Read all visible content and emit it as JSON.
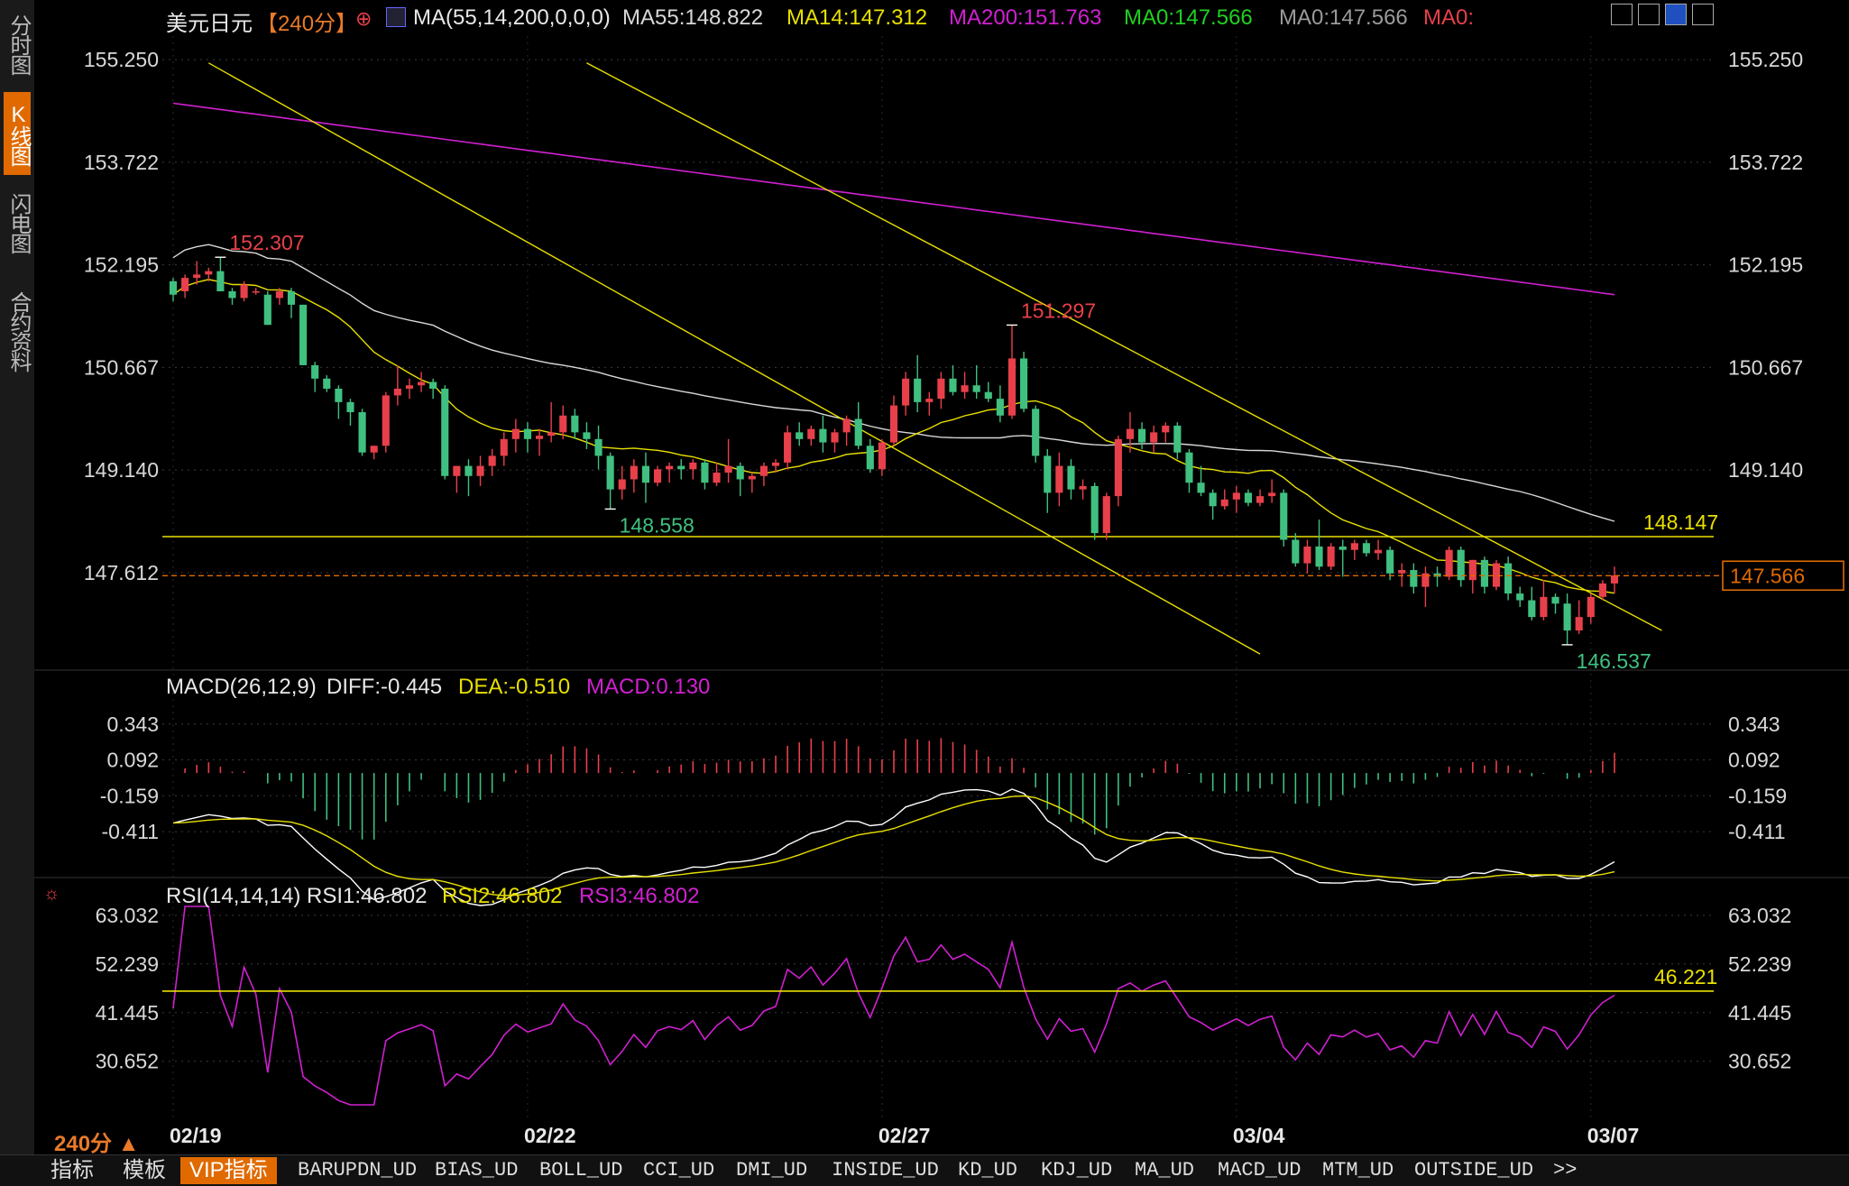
{
  "side_tabs": [
    "分时图",
    "K线图",
    "闪电图",
    "合约资料"
  ],
  "header": {
    "symbol": "美元日元",
    "period": "【240分】",
    "ma_spec": "MA(55,14,200,0,0,0)",
    "ma55": "MA55:148.822",
    "ma14": "MA14:147.312",
    "ma200": "MA200:151.763",
    "ma0a": "MA0:147.566",
    "ma0b": "MA0:147.566",
    "ma0c": "MA0:"
  },
  "macd_header": {
    "spec": "MACD(26,12,9)",
    "diff": "DIFF:-0.445",
    "dea": "DEA:-0.510",
    "macd": "MACD:0.130"
  },
  "rsi_header": {
    "spec": "RSI(14,14,14)",
    "rsi1": "RSI1:46.802",
    "rsi2": "RSI2:46.802",
    "rsi3": "RSI3:46.802"
  },
  "period_selector": "240分 ▲",
  "bottom_tabs": [
    "指标",
    "模板",
    "VIP指标",
    "BARUPDN_UD",
    "BIAS_UD",
    "BOLL_UD",
    "CCI_UD",
    "DMI_UD",
    "INSIDE_UD",
    "KD_UD",
    "KDJ_UD",
    "MA_UD",
    "MACD_UD",
    "MTM_UD",
    "OUTSIDE_UD",
    ">>"
  ],
  "colors": {
    "up": "#e8404a",
    "down": "#40c080",
    "ma14": "#e8e000",
    "ma55": "#d8d8d8",
    "ma200": "#d020d0",
    "dif": "#ffffff",
    "dea": "#e8e000",
    "rsi": "#d020d0",
    "accent": "#e06a00"
  },
  "chart_data": [
    {
      "type": "candlestick",
      "title": "美元日元 【240分】",
      "y_ticks": [
        "155.250",
        "153.722",
        "152.195",
        "150.667",
        "149.140",
        "147.612"
      ],
      "x_ticks": [
        "02/19",
        "02/22",
        "02/27",
        "03/04",
        "03/07"
      ],
      "ylim": [
        146.2,
        155.6
      ],
      "last_price": "147.566",
      "annotations": {
        "high_1": "152.307",
        "low_1": "148.558",
        "high_2": "151.297",
        "low_2": "146.537",
        "support": "148.147"
      },
      "ohlc": [
        [
          151.95,
          152.0,
          151.65,
          151.75
        ],
        [
          151.8,
          152.05,
          151.7,
          152.0
        ],
        [
          152.0,
          152.25,
          151.9,
          152.05
        ],
        [
          152.05,
          152.15,
          151.95,
          152.1
        ],
        [
          152.1,
          152.31,
          151.8,
          151.8
        ],
        [
          151.8,
          151.85,
          151.6,
          151.7
        ],
        [
          151.7,
          151.95,
          151.65,
          151.9
        ],
        [
          151.8,
          151.85,
          151.75,
          151.8
        ],
        [
          151.75,
          151.8,
          151.3,
          151.3
        ],
        [
          151.7,
          151.85,
          151.6,
          151.8
        ],
        [
          151.8,
          151.85,
          151.4,
          151.6
        ],
        [
          151.6,
          151.6,
          150.7,
          150.7
        ],
        [
          150.7,
          150.75,
          150.3,
          150.5
        ],
        [
          150.5,
          150.55,
          150.3,
          150.35
        ],
        [
          150.35,
          150.4,
          149.9,
          150.15
        ],
        [
          150.15,
          150.2,
          149.8,
          150.0
        ],
        [
          150.0,
          150.05,
          149.35,
          149.4
        ],
        [
          149.4,
          149.5,
          149.3,
          149.5
        ],
        [
          149.5,
          150.3,
          149.4,
          150.25
        ],
        [
          150.25,
          150.7,
          150.1,
          150.35
        ],
        [
          150.35,
          150.5,
          150.2,
          150.4
        ],
        [
          150.4,
          150.6,
          150.3,
          150.45
        ],
        [
          150.45,
          150.5,
          150.2,
          150.35
        ],
        [
          150.35,
          150.4,
          149.0,
          149.05
        ],
        [
          149.05,
          149.2,
          148.8,
          149.2
        ],
        [
          149.2,
          149.3,
          148.75,
          149.05
        ],
        [
          149.05,
          149.35,
          148.9,
          149.2
        ],
        [
          149.2,
          149.45,
          149.05,
          149.35
        ],
        [
          149.35,
          149.7,
          149.2,
          149.6
        ],
        [
          149.6,
          149.9,
          149.4,
          149.75
        ],
        [
          149.75,
          149.85,
          149.4,
          149.6
        ],
        [
          149.6,
          149.75,
          149.35,
          149.65
        ],
        [
          149.65,
          150.15,
          149.55,
          149.7
        ],
        [
          149.7,
          150.1,
          149.6,
          149.95
        ],
        [
          149.95,
          150.05,
          149.6,
          149.7
        ],
        [
          149.7,
          149.85,
          149.45,
          149.6
        ],
        [
          149.6,
          149.8,
          149.15,
          149.35
        ],
        [
          149.35,
          149.4,
          148.56,
          148.85
        ],
        [
          148.85,
          149.2,
          148.7,
          149.0
        ],
        [
          149.0,
          149.3,
          148.8,
          149.2
        ],
        [
          149.2,
          149.4,
          148.65,
          148.95
        ],
        [
          148.95,
          149.2,
          148.9,
          149.15
        ],
        [
          149.15,
          149.25,
          148.95,
          149.2
        ],
        [
          149.2,
          149.3,
          149.0,
          149.15
        ],
        [
          149.15,
          149.3,
          149.0,
          149.25
        ],
        [
          149.25,
          149.3,
          148.85,
          148.95
        ],
        [
          148.95,
          149.25,
          148.9,
          149.1
        ],
        [
          149.1,
          149.6,
          148.95,
          149.2
        ],
        [
          149.2,
          149.25,
          148.75,
          149.0
        ],
        [
          149.0,
          149.1,
          148.8,
          149.05
        ],
        [
          149.05,
          149.25,
          148.9,
          149.2
        ],
        [
          149.2,
          149.3,
          149.1,
          149.25
        ],
        [
          149.25,
          149.8,
          149.15,
          149.7
        ],
        [
          149.7,
          149.85,
          149.5,
          149.6
        ],
        [
          149.6,
          149.8,
          149.5,
          149.75
        ],
        [
          149.75,
          149.95,
          149.4,
          149.55
        ],
        [
          149.55,
          149.75,
          149.4,
          149.7
        ],
        [
          149.7,
          149.95,
          149.5,
          149.9
        ],
        [
          149.9,
          150.15,
          149.45,
          149.5
        ],
        [
          149.5,
          149.6,
          149.1,
          149.15
        ],
        [
          149.15,
          149.6,
          149.05,
          149.55
        ],
        [
          149.55,
          150.25,
          149.5,
          150.1
        ],
        [
          150.1,
          150.6,
          149.95,
          150.5
        ],
        [
          150.5,
          150.85,
          150.0,
          150.15
        ],
        [
          150.15,
          150.3,
          149.95,
          150.2
        ],
        [
          150.2,
          150.6,
          150.05,
          150.5
        ],
        [
          150.5,
          150.7,
          150.25,
          150.3
        ],
        [
          150.3,
          150.6,
          150.2,
          150.4
        ],
        [
          150.4,
          150.7,
          150.2,
          150.3
        ],
        [
          150.3,
          150.45,
          150.15,
          150.2
        ],
        [
          150.2,
          150.4,
          149.85,
          149.95
        ],
        [
          149.95,
          151.3,
          149.9,
          150.8
        ],
        [
          150.8,
          150.9,
          150.0,
          150.05
        ],
        [
          150.05,
          150.1,
          149.25,
          149.35
        ],
        [
          149.35,
          149.45,
          148.5,
          148.8
        ],
        [
          148.8,
          149.4,
          148.6,
          149.2
        ],
        [
          149.2,
          149.3,
          148.7,
          148.85
        ],
        [
          148.85,
          149.0,
          148.7,
          148.9
        ],
        [
          148.9,
          148.95,
          148.1,
          148.2
        ],
        [
          148.2,
          148.8,
          148.1,
          148.75
        ],
        [
          148.75,
          149.65,
          148.6,
          149.6
        ],
        [
          149.6,
          150.0,
          149.4,
          149.75
        ],
        [
          149.75,
          149.85,
          149.45,
          149.55
        ],
        [
          149.55,
          149.8,
          149.4,
          149.7
        ],
        [
          149.7,
          149.85,
          149.55,
          149.8
        ],
        [
          149.8,
          149.85,
          149.3,
          149.4
        ],
        [
          149.4,
          149.45,
          148.8,
          148.95
        ],
        [
          148.95,
          149.2,
          148.75,
          148.8
        ],
        [
          148.8,
          148.85,
          148.4,
          148.6
        ],
        [
          148.6,
          148.85,
          148.55,
          148.7
        ],
        [
          148.7,
          148.9,
          148.5,
          148.8
        ],
        [
          148.8,
          148.85,
          148.6,
          148.65
        ],
        [
          148.65,
          148.85,
          148.6,
          148.75
        ],
        [
          148.75,
          149.0,
          148.65,
          148.8
        ],
        [
          148.8,
          148.85,
          148.0,
          148.1
        ],
        [
          148.1,
          148.2,
          147.7,
          147.75
        ],
        [
          147.75,
          148.1,
          147.6,
          148.0
        ],
        [
          148.0,
          148.4,
          147.65,
          147.7
        ],
        [
          147.7,
          148.05,
          147.65,
          148.0
        ],
        [
          148.0,
          148.1,
          147.55,
          147.95
        ],
        [
          147.95,
          148.1,
          147.8,
          148.05
        ],
        [
          148.05,
          148.1,
          147.85,
          147.9
        ],
        [
          147.9,
          148.1,
          147.8,
          147.95
        ],
        [
          147.95,
          148.0,
          147.5,
          147.6
        ],
        [
          147.6,
          147.75,
          147.4,
          147.65
        ],
        [
          147.65,
          147.75,
          147.3,
          147.4
        ],
        [
          147.4,
          147.7,
          147.1,
          147.6
        ],
        [
          147.6,
          147.7,
          147.4,
          147.55
        ],
        [
          147.55,
          148.0,
          147.5,
          147.95
        ],
        [
          147.95,
          148.0,
          147.4,
          147.5
        ],
        [
          147.5,
          147.8,
          147.3,
          147.8
        ],
        [
          147.8,
          147.85,
          147.3,
          147.4
        ],
        [
          147.4,
          147.8,
          147.35,
          147.75
        ],
        [
          147.75,
          147.85,
          147.2,
          147.3
        ],
        [
          147.3,
          147.4,
          147.1,
          147.2
        ],
        [
          147.2,
          147.4,
          146.9,
          146.95
        ],
        [
          146.95,
          147.5,
          146.9,
          147.25
        ],
        [
          147.25,
          147.3,
          147.0,
          147.15
        ],
        [
          147.15,
          147.3,
          146.54,
          146.75
        ],
        [
          146.75,
          147.2,
          146.7,
          146.95
        ],
        [
          146.95,
          147.3,
          146.85,
          147.25
        ],
        [
          147.25,
          147.5,
          147.2,
          147.45
        ],
        [
          147.45,
          147.7,
          147.3,
          147.57
        ]
      ]
    },
    {
      "type": "line",
      "title": "MACD(26,12,9)",
      "y_ticks": [
        "0.343",
        "0.092",
        "-0.159",
        "-0.411"
      ],
      "ylim": [
        -0.65,
        0.55
      ]
    },
    {
      "type": "line",
      "title": "RSI(14,14,14)",
      "y_ticks": [
        "63.032",
        "52.239",
        "41.445",
        "30.652"
      ],
      "ylim": [
        20,
        66
      ],
      "annotations": {
        "level": "46.221"
      }
    }
  ]
}
